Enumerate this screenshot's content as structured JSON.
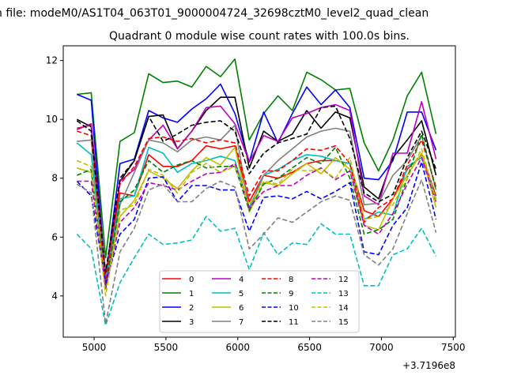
{
  "figure": {
    "suptitle": "n file: modeM0/AS1T04_063T01_9000004724_32698cztM0_level2_quad_clean",
    "offset_label": "+3.7196e8"
  },
  "chart_data": {
    "type": "line",
    "title": "Quadrant 0 module wise count rates with 100.0s bins.",
    "xlabel": "",
    "ylabel": "",
    "xlim": [
      4785,
      7515
    ],
    "ylim": [
      2.6,
      12.5
    ],
    "xticks": [
      5000,
      5500,
      6000,
      6500,
      7000,
      7500
    ],
    "yticks": [
      4,
      6,
      8,
      10,
      12
    ],
    "x": [
      4880,
      4980,
      5080,
      5180,
      5280,
      5380,
      5480,
      5580,
      5680,
      5780,
      5880,
      5980,
      6080,
      6180,
      6280,
      6380,
      6480,
      6580,
      6680,
      6780,
      6880,
      6980,
      7080,
      7180,
      7280,
      7380
    ],
    "legend": {
      "position": "lower-center",
      "ncol": 4
    },
    "series": [
      {
        "name": "0",
        "color": "#ff0000",
        "dash": "solid",
        "values": [
          9.7,
          9.8,
          4.7,
          7.5,
          7.4,
          8.8,
          8.4,
          8.4,
          8.6,
          9.1,
          9.0,
          9.1,
          7.2,
          8.1,
          8.0,
          8.2,
          8.5,
          8.6,
          8.6,
          8.5,
          6.9,
          6.7,
          7.3,
          8.3,
          8.8,
          7.4
        ]
      },
      {
        "name": "1",
        "color": "#008000",
        "dash": "solid",
        "values": [
          10.85,
          10.9,
          5.3,
          9.25,
          9.55,
          11.55,
          11.25,
          11.3,
          11.1,
          11.8,
          11.45,
          12.05,
          9.3,
          10.2,
          10.8,
          10.3,
          11.6,
          11.35,
          11.0,
          11.05,
          9.2,
          8.25,
          9.3,
          10.8,
          11.6,
          9.5
        ]
      },
      {
        "name": "2",
        "color": "#0000ff",
        "dash": "solid",
        "values": [
          10.85,
          10.65,
          4.6,
          8.5,
          8.65,
          10.3,
          10.05,
          9.9,
          10.35,
          10.7,
          11.2,
          10.2,
          8.55,
          10.25,
          9.2,
          10.2,
          11.1,
          10.5,
          11.0,
          10.4,
          8.0,
          7.95,
          8.6,
          10.25,
          10.25,
          8.95
        ]
      },
      {
        "name": "3",
        "color": "#000000",
        "dash": "solid",
        "values": [
          10.0,
          9.75,
          4.5,
          7.9,
          8.6,
          10.1,
          10.15,
          9.0,
          9.6,
          10.3,
          10.75,
          10.75,
          8.35,
          9.6,
          9.25,
          9.5,
          10.3,
          9.7,
          10.25,
          10.05,
          7.7,
          7.3,
          8.7,
          9.3,
          9.95,
          8.1
        ]
      },
      {
        "name": "4",
        "color": "#bf00bf",
        "dash": "solid",
        "values": [
          9.65,
          9.85,
          4.7,
          7.9,
          8.3,
          9.3,
          9.8,
          9.0,
          9.6,
          10.4,
          10.45,
          9.85,
          8.55,
          9.45,
          9.25,
          10.05,
          10.2,
          10.4,
          10.5,
          10.3,
          7.4,
          7.1,
          8.85,
          8.85,
          10.6,
          8.65
        ]
      },
      {
        "name": "5",
        "color": "#00bfbf",
        "dash": "solid",
        "values": [
          9.2,
          8.8,
          4.55,
          7.3,
          7.4,
          9.05,
          8.85,
          8.2,
          8.5,
          8.6,
          8.75,
          8.6,
          7.0,
          8.1,
          8.3,
          8.6,
          8.8,
          8.75,
          8.6,
          8.5,
          6.6,
          6.85,
          6.75,
          8.4,
          8.7,
          7.3
        ]
      },
      {
        "name": "6",
        "color": "#bfbf00",
        "dash": "solid",
        "values": [
          8.35,
          8.2,
          4.5,
          6.7,
          7.25,
          8.25,
          8.0,
          7.65,
          8.25,
          8.7,
          8.45,
          9.05,
          6.85,
          7.85,
          7.75,
          8.15,
          8.5,
          8.15,
          8.7,
          8.3,
          6.4,
          6.25,
          7.3,
          8.1,
          8.85,
          7.0
        ]
      },
      {
        "name": "7",
        "color": "#808080",
        "dash": "solid",
        "values": [
          9.25,
          9.3,
          4.4,
          7.1,
          8.2,
          9.3,
          9.2,
          8.9,
          9.3,
          9.4,
          9.3,
          9.8,
          6.9,
          8.1,
          8.6,
          9.0,
          9.4,
          9.6,
          9.7,
          9.6,
          7.1,
          7.15,
          8.1,
          8.6,
          9.45,
          7.6
        ]
      },
      {
        "name": "8",
        "color": "#ff0000",
        "dash": "dash",
        "values": [
          9.6,
          9.45,
          4.5,
          7.8,
          8.4,
          9.35,
          9.4,
          9.25,
          9.35,
          9.2,
          9.3,
          9.2,
          7.4,
          8.25,
          8.25,
          8.6,
          9.0,
          8.95,
          9.1,
          8.5,
          6.5,
          7.0,
          7.3,
          8.45,
          9.3,
          7.7
        ]
      },
      {
        "name": "9",
        "color": "#008000",
        "dash": "dash",
        "values": [
          8.1,
          8.3,
          4.3,
          7.2,
          7.6,
          8.6,
          8.2,
          8.45,
          8.6,
          8.35,
          8.4,
          8.4,
          6.9,
          7.8,
          8.0,
          8.35,
          8.7,
          8.5,
          9.05,
          8.0,
          6.1,
          6.25,
          6.6,
          8.0,
          9.5,
          7.6
        ]
      },
      {
        "name": "10",
        "color": "#0000ff",
        "dash": "dash",
        "values": [
          7.9,
          7.4,
          4.45,
          6.1,
          6.6,
          8.0,
          8.05,
          7.2,
          7.75,
          7.75,
          7.6,
          7.6,
          6.2,
          7.35,
          7.4,
          7.3,
          7.55,
          7.3,
          7.55,
          7.85,
          5.5,
          5.4,
          6.4,
          7.0,
          8.55,
          6.6
        ]
      },
      {
        "name": "11",
        "color": "#000000",
        "dash": "dash",
        "values": [
          9.95,
          9.6,
          4.8,
          8.0,
          8.6,
          10.1,
          9.25,
          9.5,
          9.8,
          9.9,
          9.95,
          9.6,
          8.15,
          8.85,
          9.2,
          9.35,
          9.5,
          10.4,
          10.45,
          9.35,
          7.5,
          7.2,
          7.45,
          8.7,
          9.6,
          8.3
        ]
      },
      {
        "name": "12",
        "color": "#bf00bf",
        "dash": "dash",
        "values": [
          7.9,
          7.9,
          4.25,
          6.5,
          7.0,
          7.85,
          7.75,
          7.6,
          7.9,
          8.15,
          8.2,
          8.5,
          7.0,
          7.55,
          7.75,
          7.75,
          8.1,
          8.35,
          7.95,
          8.25,
          6.4,
          6.1,
          6.8,
          7.8,
          8.7,
          7.2
        ]
      },
      {
        "name": "13",
        "color": "#00bfbf",
        "dash": "dash",
        "values": [
          6.1,
          5.6,
          3.0,
          4.45,
          5.3,
          6.1,
          5.75,
          5.8,
          5.9,
          6.7,
          6.2,
          6.3,
          4.9,
          6.15,
          5.4,
          5.8,
          5.75,
          6.45,
          6.1,
          6.1,
          4.35,
          4.35,
          5.4,
          5.6,
          6.3,
          5.35
        ]
      },
      {
        "name": "14",
        "color": "#bfbf00",
        "dash": "dash",
        "values": [
          8.6,
          8.4,
          4.0,
          6.9,
          7.1,
          8.3,
          8.1,
          7.5,
          8.2,
          8.5,
          8.2,
          8.4,
          7.1,
          7.9,
          7.8,
          8.3,
          8.25,
          8.3,
          8.0,
          8.7,
          6.6,
          6.7,
          7.1,
          8.0,
          9.0,
          7.25
        ]
      },
      {
        "name": "15",
        "color": "#808080",
        "dash": "dash",
        "values": [
          7.8,
          7.5,
          3.05,
          5.5,
          6.3,
          7.6,
          7.8,
          7.2,
          7.2,
          7.65,
          7.9,
          7.7,
          5.6,
          6.1,
          6.65,
          6.5,
          6.85,
          7.2,
          7.4,
          7.25,
          5.4,
          5.05,
          5.6,
          6.8,
          7.95,
          6.15
        ]
      }
    ]
  }
}
